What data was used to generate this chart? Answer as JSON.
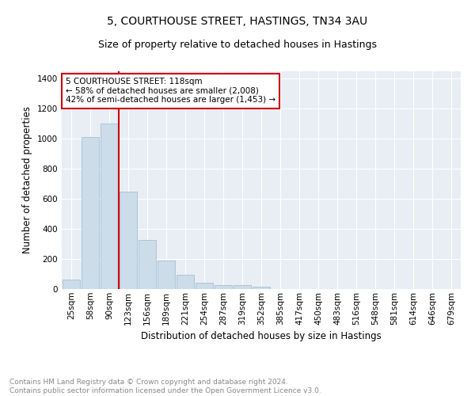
{
  "title": "5, COURTHOUSE STREET, HASTINGS, TN34 3AU",
  "subtitle": "Size of property relative to detached houses in Hastings",
  "xlabel": "Distribution of detached houses by size in Hastings",
  "ylabel": "Number of detached properties",
  "categories": [
    "25sqm",
    "58sqm",
    "90sqm",
    "123sqm",
    "156sqm",
    "189sqm",
    "221sqm",
    "254sqm",
    "287sqm",
    "319sqm",
    "352sqm",
    "385sqm",
    "417sqm",
    "450sqm",
    "483sqm",
    "516sqm",
    "548sqm",
    "581sqm",
    "614sqm",
    "646sqm",
    "679sqm"
  ],
  "bar_values": [
    65,
    1015,
    1100,
    650,
    325,
    190,
    93,
    40,
    28,
    25,
    15,
    0,
    0,
    0,
    0,
    0,
    0,
    0,
    0,
    0,
    0
  ],
  "bar_color": "#ccdce8",
  "bar_edgecolor": "#9ab8cc",
  "vline_color": "#cc0000",
  "vline_index": 2.5,
  "annotation_text": "5 COURTHOUSE STREET: 118sqm\n← 58% of detached houses are smaller (2,008)\n42% of semi-detached houses are larger (1,453) →",
  "annotation_box_edgecolor": "#cc0000",
  "annotation_box_facecolor": "#ffffff",
  "ylim": [
    0,
    1450
  ],
  "yticks": [
    0,
    200,
    400,
    600,
    800,
    1000,
    1200,
    1400
  ],
  "plot_background": "#e8eef4",
  "footer_text": "Contains HM Land Registry data © Crown copyright and database right 2024.\nContains public sector information licensed under the Open Government Licence v3.0.",
  "title_fontsize": 10,
  "subtitle_fontsize": 9,
  "xlabel_fontsize": 8.5,
  "ylabel_fontsize": 8.5,
  "tick_fontsize": 7.5,
  "footer_fontsize": 6.5,
  "annot_fontsize": 7.5
}
